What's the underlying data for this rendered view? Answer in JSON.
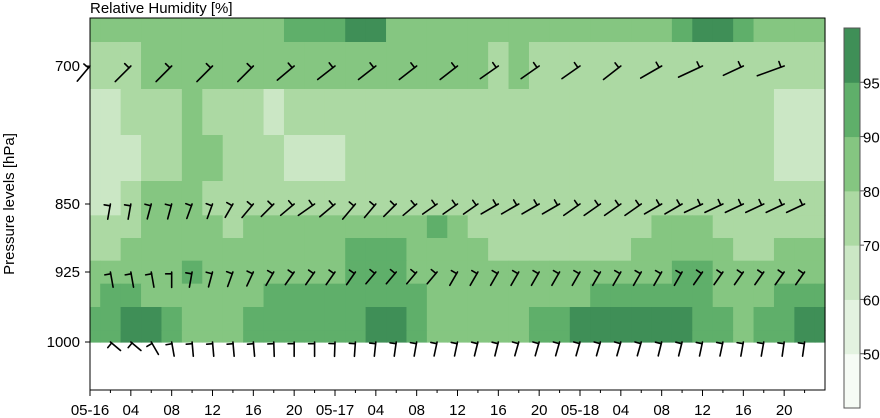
{
  "chart_data": {
    "type": "heatmap",
    "title": "Relative Humidity [%]",
    "xlabel": "",
    "ylabel": "Pressure levels [hPa]",
    "x_tick_labels": [
      "05-16",
      "04",
      "08",
      "12",
      "16",
      "20",
      "05-17",
      "04",
      "08",
      "12",
      "16",
      "20",
      "05-18",
      "04",
      "08",
      "12",
      "16",
      "20"
    ],
    "y_tick_labels": [
      "700",
      "850",
      "925",
      "1000"
    ],
    "y_levels_hpa": [
      700,
      850,
      925,
      1000
    ],
    "ylim_hpa": [
      1050,
      650
    ],
    "colorbar": {
      "ticks": [
        "50",
        "60",
        "70",
        "80",
        "90",
        "95"
      ],
      "levels": [
        0,
        50,
        60,
        70,
        80,
        90,
        95,
        100
      ],
      "colors": [
        "#f6fbf5",
        "#e3f2e0",
        "#cbe7c5",
        "#acd9a3",
        "#85c681",
        "#5faf6a",
        "#3f8f57"
      ]
    },
    "x_times_hours": [
      0,
      2,
      4,
      6,
      8,
      10,
      12,
      14,
      16,
      18,
      20,
      22,
      24,
      26,
      28,
      30,
      32,
      34,
      36,
      38,
      40,
      42,
      44,
      46,
      48,
      50,
      52,
      54,
      56,
      58,
      60,
      62,
      64,
      66,
      68,
      70,
      72
    ],
    "rh_rows": [
      {
        "level": 650,
        "values": [
          80,
          82,
          82,
          82,
          84,
          84,
          82,
          82,
          82,
          84,
          90,
          90,
          92,
          95,
          96,
          84,
          82,
          82,
          84,
          84,
          84,
          82,
          80,
          82,
          84,
          84,
          84,
          82,
          88,
          92,
          95,
          95,
          92,
          88,
          84,
          82,
          82
        ]
      },
      {
        "level": 700,
        "values": [
          74,
          76,
          78,
          80,
          82,
          84,
          84,
          82,
          80,
          80,
          82,
          84,
          86,
          88,
          86,
          82,
          80,
          80,
          82,
          80,
          78,
          80,
          78,
          78,
          78,
          78,
          78,
          76,
          78,
          78,
          78,
          78,
          78,
          76,
          76,
          78,
          78
        ]
      },
      {
        "level": 750,
        "values": [
          63,
          66,
          70,
          74,
          78,
          80,
          76,
          72,
          70,
          68,
          70,
          72,
          72,
          72,
          72,
          74,
          76,
          76,
          76,
          74,
          72,
          72,
          72,
          72,
          72,
          72,
          72,
          72,
          72,
          72,
          72,
          72,
          72,
          70,
          68,
          66,
          64
        ]
      },
      {
        "level": 800,
        "values": [
          60,
          62,
          66,
          70,
          76,
          80,
          82,
          76,
          72,
          70,
          68,
          66,
          68,
          70,
          72,
          72,
          74,
          76,
          76,
          74,
          72,
          72,
          72,
          72,
          72,
          72,
          72,
          72,
          72,
          72,
          72,
          72,
          72,
          70,
          68,
          64,
          62
        ]
      },
      {
        "level": 850,
        "values": [
          62,
          66,
          72,
          80,
          80,
          80,
          78,
          76,
          74,
          74,
          72,
          72,
          70,
          70,
          72,
          72,
          76,
          78,
          78,
          74,
          72,
          72,
          72,
          72,
          72,
          72,
          72,
          74,
          76,
          76,
          74,
          72,
          72,
          72,
          72,
          72,
          70
        ]
      },
      {
        "level": 875,
        "values": [
          70,
          72,
          74,
          80,
          80,
          82,
          80,
          78,
          80,
          82,
          84,
          84,
          82,
          82,
          84,
          86,
          88,
          90,
          80,
          76,
          72,
          70,
          70,
          70,
          70,
          72,
          76,
          78,
          80,
          80,
          80,
          78,
          76,
          76,
          78,
          78,
          76
        ]
      },
      {
        "level": 900,
        "values": [
          78,
          78,
          80,
          82,
          84,
          86,
          88,
          84,
          80,
          82,
          84,
          86,
          88,
          90,
          92,
          92,
          86,
          88,
          86,
          80,
          78,
          76,
          74,
          72,
          72,
          74,
          78,
          80,
          82,
          84,
          82,
          80,
          78,
          78,
          80,
          82,
          82
        ]
      },
      {
        "level": 925,
        "values": [
          82,
          84,
          86,
          84,
          86,
          90,
          88,
          84,
          82,
          84,
          86,
          86,
          88,
          90,
          92,
          90,
          84,
          82,
          82,
          80,
          80,
          80,
          80,
          80,
          80,
          82,
          84,
          86,
          88,
          90,
          90,
          86,
          84,
          84,
          86,
          86,
          86
        ]
      },
      {
        "level": 950,
        "values": [
          88,
          90,
          90,
          88,
          88,
          88,
          86,
          84,
          86,
          90,
          92,
          92,
          90,
          92,
          94,
          94,
          90,
          86,
          84,
          82,
          82,
          84,
          86,
          88,
          88,
          90,
          92,
          92,
          92,
          92,
          92,
          88,
          86,
          88,
          90,
          92,
          92
        ]
      },
      {
        "level": 975,
        "values": [
          92,
          94,
          96,
          96,
          94,
          88,
          86,
          84,
          90,
          92,
          92,
          92,
          92,
          94,
          96,
          96,
          92,
          88,
          86,
          84,
          84,
          88,
          92,
          94,
          96,
          96,
          96,
          96,
          96,
          96,
          94,
          90,
          88,
          90,
          94,
          96,
          96
        ]
      },
      {
        "level": 1000,
        "values": [
          92,
          94,
          96,
          96,
          94,
          88,
          86,
          84,
          90,
          92,
          92,
          92,
          92,
          94,
          96,
          96,
          92,
          88,
          86,
          84,
          84,
          88,
          92,
          94,
          96,
          96,
          96,
          96,
          96,
          96,
          94,
          90,
          88,
          90,
          94,
          96,
          96
        ]
      }
    ],
    "wind_barbs": [
      {
        "level": 700,
        "hours": [
          0,
          4,
          8,
          12,
          16,
          20,
          24,
          28,
          32,
          36,
          40,
          44,
          48,
          52,
          56,
          60,
          64,
          68
        ],
        "direction_deg": [
          220,
          225,
          225,
          225,
          225,
          230,
          232,
          232,
          232,
          232,
          235,
          235,
          235,
          232,
          240,
          245,
          245,
          250
        ],
        "length": [
          0.9,
          1.0,
          1.0,
          1.0,
          1.0,
          1.0,
          1.0,
          1.0,
          1.0,
          1.0,
          1.0,
          1.0,
          1.0,
          1.0,
          1.1,
          1.2,
          1.0,
          1.3
        ]
      },
      {
        "level": 850,
        "hours": [
          2,
          4,
          6,
          8,
          10,
          12,
          14,
          16,
          18,
          20,
          22,
          24,
          26,
          28,
          30,
          32,
          34,
          36,
          38,
          40,
          42,
          44,
          46,
          48,
          50,
          52,
          54,
          56,
          58,
          60,
          62,
          64,
          66,
          68,
          70
        ],
        "direction_deg": [
          190,
          190,
          195,
          195,
          200,
          200,
          210,
          220,
          225,
          230,
          235,
          230,
          220,
          220,
          225,
          230,
          235,
          235,
          235,
          240,
          240,
          240,
          240,
          235,
          235,
          235,
          235,
          240,
          240,
          245,
          245,
          245,
          245,
          245,
          245
        ],
        "length": [
          0.7,
          0.7,
          0.7,
          0.7,
          0.7,
          0.7,
          0.7,
          0.8,
          0.8,
          0.8,
          0.9,
          0.9,
          0.9,
          0.8,
          0.8,
          0.8,
          0.8,
          0.8,
          0.8,
          0.9,
          0.9,
          0.9,
          0.9,
          0.9,
          0.9,
          0.9,
          0.9,
          0.9,
          0.9,
          0.9,
          0.9,
          0.9,
          0.9,
          0.9,
          0.9
        ]
      },
      {
        "level": 925,
        "hours": [
          2,
          4,
          6,
          8,
          10,
          12,
          14,
          16,
          18,
          20,
          22,
          24,
          26,
          28,
          30,
          32,
          34,
          36,
          38,
          40,
          42,
          44,
          46,
          48,
          50,
          52,
          54,
          56,
          58,
          60,
          62,
          64,
          66,
          68,
          70
        ],
        "direction_deg": [
          170,
          170,
          170,
          180,
          190,
          195,
          200,
          205,
          210,
          215,
          215,
          215,
          215,
          220,
          220,
          220,
          220,
          210,
          210,
          210,
          210,
          210,
          210,
          210,
          210,
          210,
          210,
          210,
          210,
          215,
          215,
          215,
          215,
          215,
          215
        ],
        "length": [
          0.7,
          0.7,
          0.7,
          0.7,
          0.7,
          0.7,
          0.7,
          0.7,
          0.7,
          0.7,
          0.7,
          0.7,
          0.7,
          0.7,
          0.7,
          0.7,
          0.7,
          0.7,
          0.7,
          0.7,
          0.7,
          0.7,
          0.7,
          0.7,
          0.7,
          0.7,
          0.7,
          0.7,
          0.7,
          0.7,
          0.7,
          0.7,
          0.7,
          0.7,
          0.7
        ]
      },
      {
        "level": 1000,
        "hours": [
          2,
          4,
          6,
          8,
          10,
          12,
          14,
          16,
          18,
          20,
          22,
          24,
          26,
          28,
          30,
          32,
          34,
          36,
          38,
          40,
          42,
          44,
          46,
          48,
          50,
          52,
          54,
          56,
          58,
          60,
          62,
          64,
          66,
          68,
          70
        ],
        "direction_deg": [
          130,
          130,
          150,
          170,
          175,
          175,
          175,
          175,
          178,
          180,
          180,
          182,
          184,
          186,
          188,
          190,
          192,
          192,
          194,
          194,
          196,
          196,
          196,
          196,
          196,
          196,
          196,
          194,
          194,
          192,
          192,
          190,
          190,
          188,
          188
        ],
        "length": [
          0.6,
          0.6,
          0.65,
          0.65,
          0.65,
          0.65,
          0.65,
          0.65,
          0.65,
          0.65,
          0.65,
          0.65,
          0.65,
          0.65,
          0.65,
          0.65,
          0.65,
          0.65,
          0.65,
          0.65,
          0.65,
          0.65,
          0.65,
          0.65,
          0.65,
          0.65,
          0.65,
          0.65,
          0.65,
          0.65,
          0.65,
          0.65,
          0.65,
          0.65,
          0.65
        ]
      }
    ],
    "grid": false,
    "legend": "colorbar-right"
  }
}
